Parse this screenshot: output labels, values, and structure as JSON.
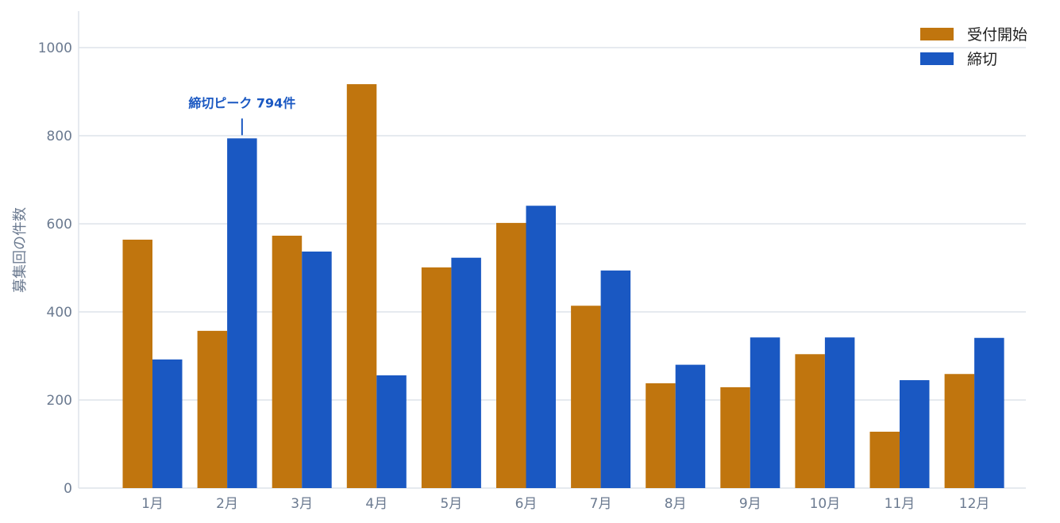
{
  "chart_data": {
    "type": "bar",
    "categories": [
      "1月",
      "2月",
      "3月",
      "4月",
      "5月",
      "6月",
      "7月",
      "8月",
      "9月",
      "10月",
      "11月",
      "12月"
    ],
    "series": [
      {
        "name": "受付開始",
        "color": "#c0750e",
        "values": [
          564,
          357,
          573,
          917,
          501,
          602,
          414,
          238,
          229,
          304,
          128,
          259
        ]
      },
      {
        "name": "締切",
        "color": "#1a58c2",
        "values": [
          292,
          794,
          537,
          256,
          523,
          641,
          494,
          280,
          342,
          342,
          245,
          341
        ]
      }
    ],
    "xlabel": "",
    "ylabel": "募集回の件数",
    "ylim": [
      0,
      1000
    ],
    "yticks": [
      "0",
      "200",
      "400",
      "600",
      "800",
      "1000"
    ],
    "grid": true,
    "legend": "top-right",
    "annotation": {
      "text": "締切ピーク 794件",
      "category": "2月",
      "series": "締切",
      "value": 794,
      "color": "#1a58c2"
    }
  }
}
